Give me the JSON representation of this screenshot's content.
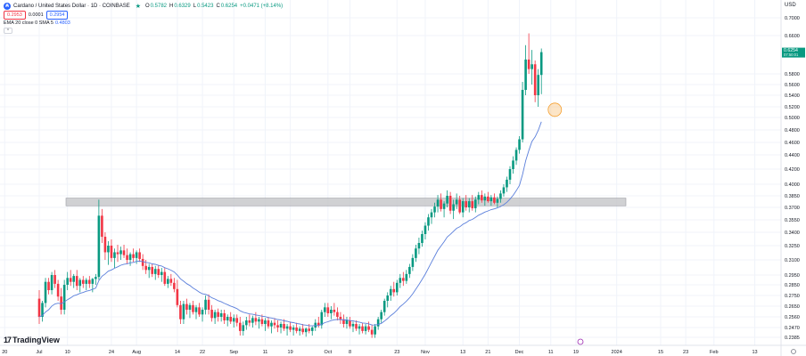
{
  "header": {
    "symbol_title": "Cardano / United States Dollar · 1D · COINBASE",
    "logo_letter": "₳",
    "status_icon": "green-dot-icon",
    "ohlc": [
      {
        "label": "O",
        "value": "0.5782"
      },
      {
        "label": "H",
        "value": "0.6329"
      },
      {
        "label": "L",
        "value": "0.5423"
      },
      {
        "label": "C",
        "value": "0.6254"
      }
    ],
    "change": "+0.0471 (+8.14%)",
    "bid": "0.2953",
    "spread": "0.0001",
    "ask": "0.2954",
    "indicator": "EMA 20 close 0 SMA 5",
    "indicator_value": "0.4803",
    "collapse_icon": "chevron-up-icon",
    "currency": "USD"
  },
  "branding": {
    "text": "TradingView",
    "icon": "tradingview-logo-icon"
  },
  "price_label": {
    "price": "0.6254",
    "countdown": "07:50:01"
  },
  "colors": {
    "up": "#089981",
    "down": "#f23645",
    "ema": "#5b7fdb",
    "zone": "#c8c9cc",
    "marker": "#f7b55e",
    "axis_label_bg": "#089981"
  },
  "chart_data": {
    "type": "candlestick",
    "symbol": "ADAUSD",
    "timeframe": "1D",
    "ylim": [
      0.229,
      0.738
    ],
    "y_ticks": [
      0.7,
      0.66,
      0.58,
      0.56,
      0.54,
      0.52,
      0.5,
      0.48,
      0.46,
      0.44,
      0.42,
      0.4,
      0.385,
      0.37,
      0.355,
      0.34,
      0.325,
      0.31,
      0.295,
      0.285,
      0.275,
      0.265,
      0.256,
      0.247,
      0.2385
    ],
    "x_ticks": [
      {
        "label": "20",
        "i": -11
      },
      {
        "label": "Jul",
        "i": 0
      },
      {
        "label": "10",
        "i": 9
      },
      {
        "label": "24",
        "i": 23
      },
      {
        "label": "Aug",
        "i": 31
      },
      {
        "label": "14",
        "i": 44
      },
      {
        "label": "22",
        "i": 52
      },
      {
        "label": "Sep",
        "i": 62
      },
      {
        "label": "11",
        "i": 72
      },
      {
        "label": "19",
        "i": 80
      },
      {
        "label": "Oct",
        "i": 92
      },
      {
        "label": "8",
        "i": 99
      },
      {
        "label": "23",
        "i": 114
      },
      {
        "label": "Nov",
        "i": 123
      },
      {
        "label": "13",
        "i": 135
      },
      {
        "label": "21",
        "i": 143
      },
      {
        "label": "Dec",
        "i": 153
      },
      {
        "label": "11",
        "i": 163
      },
      {
        "label": "19",
        "i": 171
      },
      {
        "label": "2024",
        "i": 184
      },
      {
        "label": "15",
        "i": 198
      },
      {
        "label": "23",
        "i": 206
      },
      {
        "label": "Feb",
        "i": 215
      },
      {
        "label": "13",
        "i": 228
      }
    ],
    "resistance_zone": {
      "low": 0.372,
      "high": 0.382
    },
    "marker": {
      "i": 164,
      "price": 0.5145
    },
    "candles": [
      [
        0.272,
        0.28,
        0.25,
        0.256
      ],
      [
        0.256,
        0.27,
        0.252,
        0.268
      ],
      [
        0.268,
        0.292,
        0.264,
        0.288
      ],
      [
        0.288,
        0.292,
        0.276,
        0.28
      ],
      [
        0.28,
        0.298,
        0.276,
        0.295
      ],
      [
        0.295,
        0.3,
        0.282,
        0.286
      ],
      [
        0.286,
        0.29,
        0.27,
        0.274
      ],
      [
        0.274,
        0.282,
        0.258,
        0.262
      ],
      [
        0.262,
        0.29,
        0.258,
        0.285
      ],
      [
        0.285,
        0.298,
        0.28,
        0.292
      ],
      [
        0.292,
        0.3,
        0.284,
        0.288
      ],
      [
        0.288,
        0.296,
        0.282,
        0.294
      ],
      [
        0.294,
        0.3,
        0.28,
        0.284
      ],
      [
        0.284,
        0.292,
        0.278,
        0.29
      ],
      [
        0.29,
        0.294,
        0.282,
        0.286
      ],
      [
        0.286,
        0.292,
        0.28,
        0.29
      ],
      [
        0.29,
        0.294,
        0.282,
        0.286
      ],
      [
        0.286,
        0.292,
        0.278,
        0.291
      ],
      [
        0.291,
        0.296,
        0.285,
        0.293
      ],
      [
        0.293,
        0.38,
        0.29,
        0.36
      ],
      [
        0.36,
        0.368,
        0.328,
        0.335
      ],
      [
        0.335,
        0.34,
        0.31,
        0.318
      ],
      [
        0.318,
        0.33,
        0.305,
        0.325
      ],
      [
        0.325,
        0.332,
        0.308,
        0.312
      ],
      [
        0.312,
        0.322,
        0.302,
        0.318
      ],
      [
        0.318,
        0.326,
        0.308,
        0.316
      ],
      [
        0.316,
        0.324,
        0.31,
        0.32
      ],
      [
        0.32,
        0.326,
        0.312,
        0.315
      ],
      [
        0.315,
        0.322,
        0.306,
        0.31
      ],
      [
        0.31,
        0.318,
        0.304,
        0.316
      ],
      [
        0.316,
        0.322,
        0.308,
        0.312
      ],
      [
        0.312,
        0.32,
        0.306,
        0.318
      ],
      [
        0.318,
        0.322,
        0.308,
        0.311
      ],
      [
        0.311,
        0.316,
        0.3,
        0.304
      ],
      [
        0.304,
        0.31,
        0.296,
        0.3
      ],
      [
        0.3,
        0.306,
        0.292,
        0.303
      ],
      [
        0.303,
        0.306,
        0.293,
        0.296
      ],
      [
        0.296,
        0.304,
        0.29,
        0.301
      ],
      [
        0.301,
        0.305,
        0.292,
        0.295
      ],
      [
        0.295,
        0.302,
        0.288,
        0.298
      ],
      [
        0.298,
        0.302,
        0.284,
        0.286
      ],
      [
        0.286,
        0.294,
        0.282,
        0.291
      ],
      [
        0.291,
        0.296,
        0.284,
        0.287
      ],
      [
        0.287,
        0.292,
        0.278,
        0.281
      ],
      [
        0.281,
        0.29,
        0.264,
        0.266
      ],
      [
        0.266,
        0.27,
        0.25,
        0.254
      ],
      [
        0.254,
        0.27,
        0.25,
        0.267
      ],
      [
        0.267,
        0.272,
        0.258,
        0.262
      ],
      [
        0.262,
        0.268,
        0.255,
        0.266
      ],
      [
        0.266,
        0.27,
        0.258,
        0.26
      ],
      [
        0.26,
        0.266,
        0.254,
        0.264
      ],
      [
        0.264,
        0.268,
        0.256,
        0.258
      ],
      [
        0.258,
        0.264,
        0.252,
        0.262
      ],
      [
        0.262,
        0.275,
        0.258,
        0.271
      ],
      [
        0.271,
        0.276,
        0.258,
        0.262
      ],
      [
        0.262,
        0.266,
        0.252,
        0.255
      ],
      [
        0.255,
        0.262,
        0.25,
        0.26
      ],
      [
        0.26,
        0.263,
        0.252,
        0.256
      ],
      [
        0.256,
        0.262,
        0.252,
        0.259
      ],
      [
        0.259,
        0.262,
        0.25,
        0.253
      ],
      [
        0.253,
        0.258,
        0.248,
        0.256
      ],
      [
        0.256,
        0.26,
        0.25,
        0.252
      ],
      [
        0.252,
        0.258,
        0.247,
        0.255
      ],
      [
        0.255,
        0.258,
        0.248,
        0.251
      ],
      [
        0.251,
        0.256,
        0.24,
        0.244
      ],
      [
        0.244,
        0.252,
        0.24,
        0.249
      ],
      [
        0.249,
        0.256,
        0.245,
        0.253
      ],
      [
        0.253,
        0.258,
        0.248,
        0.251
      ],
      [
        0.251,
        0.257,
        0.247,
        0.255
      ],
      [
        0.255,
        0.26,
        0.249,
        0.252
      ],
      [
        0.252,
        0.256,
        0.246,
        0.254
      ],
      [
        0.254,
        0.258,
        0.248,
        0.25
      ],
      [
        0.25,
        0.255,
        0.244,
        0.253
      ],
      [
        0.253,
        0.256,
        0.246,
        0.248
      ],
      [
        0.248,
        0.253,
        0.242,
        0.251
      ],
      [
        0.251,
        0.255,
        0.246,
        0.249
      ],
      [
        0.249,
        0.253,
        0.243,
        0.247
      ],
      [
        0.247,
        0.252,
        0.242,
        0.25
      ],
      [
        0.25,
        0.254,
        0.244,
        0.246
      ],
      [
        0.246,
        0.25,
        0.24,
        0.248
      ],
      [
        0.248,
        0.252,
        0.243,
        0.245
      ],
      [
        0.245,
        0.249,
        0.24,
        0.247
      ],
      [
        0.247,
        0.251,
        0.242,
        0.244
      ],
      [
        0.244,
        0.248,
        0.24,
        0.246
      ],
      [
        0.246,
        0.25,
        0.241,
        0.243
      ],
      [
        0.243,
        0.247,
        0.239,
        0.246
      ],
      [
        0.246,
        0.25,
        0.242,
        0.244
      ],
      [
        0.244,
        0.248,
        0.24,
        0.247
      ],
      [
        0.247,
        0.254,
        0.244,
        0.251
      ],
      [
        0.251,
        0.256,
        0.247,
        0.249
      ],
      [
        0.249,
        0.262,
        0.246,
        0.26
      ],
      [
        0.26,
        0.268,
        0.256,
        0.264
      ],
      [
        0.264,
        0.268,
        0.256,
        0.259
      ],
      [
        0.259,
        0.265,
        0.254,
        0.262
      ],
      [
        0.262,
        0.268,
        0.257,
        0.26
      ],
      [
        0.26,
        0.264,
        0.253,
        0.256
      ],
      [
        0.256,
        0.26,
        0.25,
        0.254
      ],
      [
        0.254,
        0.258,
        0.247,
        0.25
      ],
      [
        0.25,
        0.256,
        0.246,
        0.253
      ],
      [
        0.253,
        0.256,
        0.246,
        0.248
      ],
      [
        0.248,
        0.252,
        0.243,
        0.25
      ],
      [
        0.25,
        0.253,
        0.244,
        0.246
      ],
      [
        0.246,
        0.25,
        0.241,
        0.248
      ],
      [
        0.248,
        0.251,
        0.242,
        0.244
      ],
      [
        0.244,
        0.25,
        0.241,
        0.248
      ],
      [
        0.248,
        0.252,
        0.243,
        0.245
      ],
      [
        0.245,
        0.249,
        0.238,
        0.241
      ],
      [
        0.241,
        0.25,
        0.238,
        0.248
      ],
      [
        0.248,
        0.256,
        0.245,
        0.254
      ],
      [
        0.254,
        0.262,
        0.251,
        0.26
      ],
      [
        0.26,
        0.272,
        0.257,
        0.27
      ],
      [
        0.27,
        0.278,
        0.264,
        0.275
      ],
      [
        0.275,
        0.284,
        0.27,
        0.281
      ],
      [
        0.281,
        0.288,
        0.274,
        0.278
      ],
      [
        0.278,
        0.29,
        0.275,
        0.287
      ],
      [
        0.287,
        0.296,
        0.282,
        0.292
      ],
      [
        0.292,
        0.298,
        0.284,
        0.289
      ],
      [
        0.289,
        0.3,
        0.286,
        0.296
      ],
      [
        0.296,
        0.306,
        0.292,
        0.303
      ],
      [
        0.303,
        0.316,
        0.299,
        0.312
      ],
      [
        0.312,
        0.326,
        0.308,
        0.322
      ],
      [
        0.322,
        0.334,
        0.316,
        0.328
      ],
      [
        0.328,
        0.342,
        0.324,
        0.338
      ],
      [
        0.338,
        0.352,
        0.332,
        0.348
      ],
      [
        0.348,
        0.362,
        0.342,
        0.358
      ],
      [
        0.358,
        0.368,
        0.35,
        0.364
      ],
      [
        0.364,
        0.376,
        0.358,
        0.371
      ],
      [
        0.371,
        0.386,
        0.364,
        0.38
      ],
      [
        0.38,
        0.388,
        0.365,
        0.368
      ],
      [
        0.368,
        0.378,
        0.358,
        0.375
      ],
      [
        0.375,
        0.392,
        0.37,
        0.385
      ],
      [
        0.385,
        0.39,
        0.362,
        0.366
      ],
      [
        0.366,
        0.38,
        0.356,
        0.374
      ],
      [
        0.374,
        0.388,
        0.368,
        0.38
      ],
      [
        0.38,
        0.385,
        0.362,
        0.364
      ],
      [
        0.364,
        0.382,
        0.358,
        0.378
      ],
      [
        0.378,
        0.386,
        0.366,
        0.37
      ],
      [
        0.37,
        0.382,
        0.364,
        0.378
      ],
      [
        0.378,
        0.386,
        0.366,
        0.369
      ],
      [
        0.369,
        0.384,
        0.364,
        0.38
      ],
      [
        0.38,
        0.39,
        0.374,
        0.386
      ],
      [
        0.386,
        0.392,
        0.376,
        0.379
      ],
      [
        0.379,
        0.388,
        0.372,
        0.384
      ],
      [
        0.384,
        0.39,
        0.376,
        0.378
      ],
      [
        0.378,
        0.386,
        0.372,
        0.383
      ],
      [
        0.383,
        0.388,
        0.374,
        0.376
      ],
      [
        0.376,
        0.384,
        0.37,
        0.381
      ],
      [
        0.381,
        0.392,
        0.376,
        0.388
      ],
      [
        0.388,
        0.4,
        0.384,
        0.396
      ],
      [
        0.396,
        0.41,
        0.39,
        0.406
      ],
      [
        0.406,
        0.424,
        0.4,
        0.42
      ],
      [
        0.42,
        0.438,
        0.414,
        0.432
      ],
      [
        0.432,
        0.452,
        0.426,
        0.448
      ],
      [
        0.448,
        0.47,
        0.442,
        0.465
      ],
      [
        0.465,
        0.565,
        0.46,
        0.55
      ],
      [
        0.55,
        0.64,
        0.54,
        0.61
      ],
      [
        0.61,
        0.665,
        0.58,
        0.59
      ],
      [
        0.59,
        0.63,
        0.56,
        0.6
      ],
      [
        0.6,
        0.608,
        0.528,
        0.54
      ],
      [
        0.54,
        0.59,
        0.52,
        0.578
      ],
      [
        0.578,
        0.633,
        0.542,
        0.6254
      ]
    ]
  }
}
